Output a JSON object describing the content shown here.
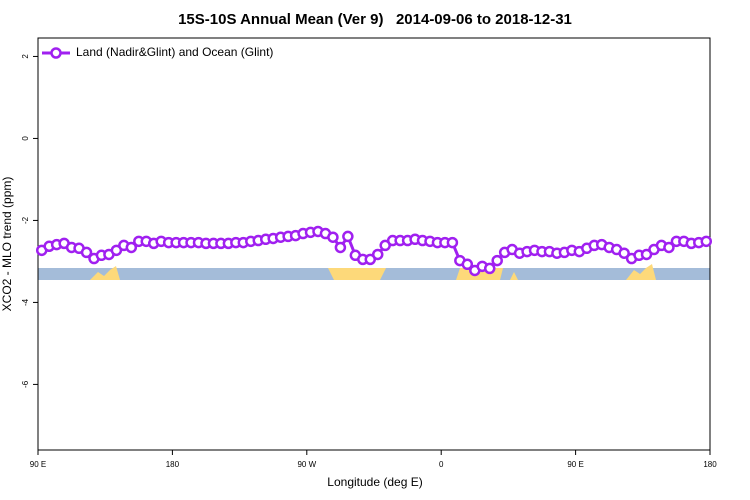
{
  "chart_data": {
    "type": "line",
    "title": "15S-10S Annual Mean (Ver 9)   2014-09-06 to 2018-12-31",
    "x_label": "Longitude (deg E)",
    "y_label": "XCO2 - MLO trend (ppm)",
    "legend": "top-left",
    "xlim": [
      90,
      540
    ],
    "ylim": [
      -7.6,
      2.45
    ],
    "xticks": [
      {
        "value": 90,
        "label": "90 E"
      },
      180,
      {
        "value": 270,
        "label": "90 W"
      },
      {
        "value": 360,
        "label": "0"
      },
      {
        "value": 450,
        "label": "90 E"
      },
      {
        "value": 540,
        "label": "180"
      }
    ],
    "yticks": [
      2,
      0,
      -2,
      -4,
      -6
    ],
    "x": [
      92.5,
      97.5,
      102.5,
      107.5,
      112.5,
      117.5,
      122.5,
      127.5,
      132.5,
      137.5,
      142.5,
      147.5,
      152.5,
      157.5,
      162.5,
      167.5,
      172.5,
      177.5,
      182.5,
      187.5,
      192.5,
      197.5,
      202.5,
      207.5,
      212.5,
      217.5,
      222.5,
      227.5,
      232.5,
      237.5,
      242.5,
      247.5,
      252.5,
      257.5,
      262.5,
      267.5,
      272.5,
      277.5,
      282.5,
      287.5,
      292.5,
      297.5,
      302.5,
      307.5,
      312.5,
      317.5,
      322.5,
      327.5,
      332.5,
      337.5,
      342.5,
      347.5,
      352.5,
      357.5,
      362.5,
      367.5,
      372.5,
      377.5,
      382.5,
      387.5,
      392.5,
      397.5,
      402.5,
      407.5,
      412.5,
      417.5,
      422.5,
      427.5,
      432.5,
      437.5,
      442.5,
      447.5,
      452.5,
      457.5,
      462.5,
      467.5,
      472.5,
      477.5,
      482.5,
      487.5,
      492.5,
      497.5,
      502.5,
      507.5,
      512.5,
      517.5,
      522.5,
      527.5,
      532.5,
      537.5
    ],
    "series": [
      {
        "name": "Land (Nadir&Glint) and Ocean (Glint)",
        "color": "#a020f0",
        "values": [
          -2.73,
          -2.63,
          -2.59,
          -2.56,
          -2.66,
          -2.68,
          -2.78,
          -2.93,
          -2.85,
          -2.83,
          -2.73,
          -2.61,
          -2.66,
          -2.51,
          -2.51,
          -2.56,
          -2.51,
          -2.54,
          -2.54,
          -2.54,
          -2.54,
          -2.54,
          -2.56,
          -2.56,
          -2.56,
          -2.56,
          -2.54,
          -2.54,
          -2.51,
          -2.49,
          -2.46,
          -2.44,
          -2.41,
          -2.39,
          -2.37,
          -2.32,
          -2.29,
          -2.27,
          -2.32,
          -2.41,
          -2.66,
          -2.39,
          -2.85,
          -2.95,
          -2.95,
          -2.83,
          -2.61,
          -2.49,
          -2.49,
          -2.49,
          -2.46,
          -2.49,
          -2.51,
          -2.54,
          -2.54,
          -2.54,
          -2.98,
          -3.07,
          -3.22,
          -3.12,
          -3.17,
          -2.98,
          -2.78,
          -2.71,
          -2.8,
          -2.76,
          -2.73,
          -2.76,
          -2.76,
          -2.8,
          -2.78,
          -2.73,
          -2.76,
          -2.68,
          -2.61,
          -2.59,
          -2.66,
          -2.71,
          -2.8,
          -2.93,
          -2.85,
          -2.83,
          -2.71,
          -2.61,
          -2.66,
          -2.51,
          -2.51,
          -2.56,
          -2.54,
          -2.51
        ]
      }
    ]
  }
}
